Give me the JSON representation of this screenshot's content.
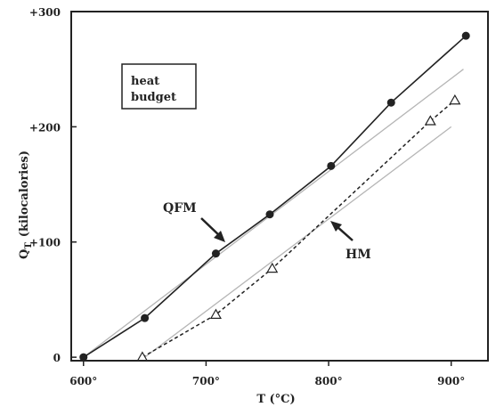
{
  "chart_data": {
    "type": "line",
    "xlabel": "T (°C)",
    "ylabel": "Q",
    "ylabel_sub": "T",
    "ylabel_units": "(kilocalories)",
    "xlim": [
      590,
      930
    ],
    "ylim": [
      -3,
      300
    ],
    "x_ticks": [
      {
        "value": 600,
        "label": "600°"
      },
      {
        "value": 700,
        "label": "700°"
      },
      {
        "value": 800,
        "label": "800°"
      },
      {
        "value": 900,
        "label": "900°"
      }
    ],
    "y_ticks": [
      {
        "value": 0,
        "label": "0"
      },
      {
        "value": 100,
        "label": "+100"
      },
      {
        "value": 200,
        "label": "+200"
      },
      {
        "value": 300,
        "label": "+300"
      }
    ],
    "series": [
      {
        "name": "QFM",
        "marker": "filled-circle",
        "line": "solid",
        "x": [
          600,
          650,
          708,
          752,
          802,
          851,
          912
        ],
        "y": [
          0,
          34,
          90,
          124,
          166,
          221,
          279
        ]
      },
      {
        "name": "HM",
        "marker": "open-triangle",
        "line": "dashed",
        "x": [
          648,
          708,
          754,
          883,
          903
        ],
        "y": [
          0,
          37,
          77,
          205,
          223
        ]
      }
    ],
    "reference_lines": [
      {
        "x": [
          600,
          910
        ],
        "y": [
          0,
          250
        ]
      },
      {
        "x": [
          650,
          900
        ],
        "y": [
          0,
          200
        ]
      }
    ],
    "annotations": {
      "box_lines": [
        "heat",
        "budget"
      ],
      "qfm_label": "QFM",
      "hm_label": "HM"
    }
  }
}
